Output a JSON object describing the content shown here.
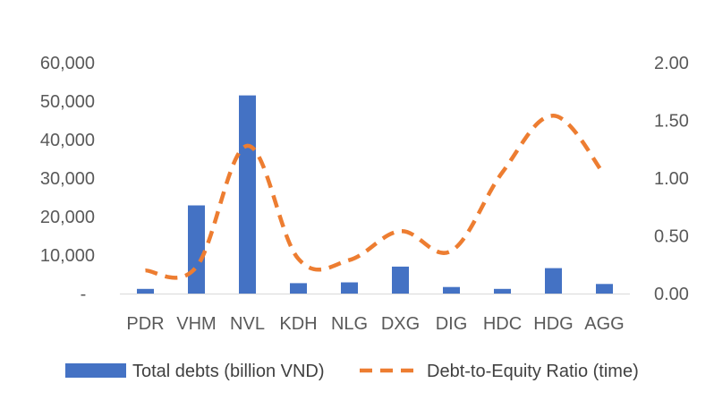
{
  "chart_data": {
    "type": "bar",
    "categories": [
      "PDR",
      "VHM",
      "NVL",
      "KDH",
      "NLG",
      "DXG",
      "DIG",
      "HDC",
      "HDG",
      "AGG"
    ],
    "series": [
      {
        "name": "Total debts (billion VND)",
        "type": "bar",
        "axis": "left",
        "color": "#4472C4",
        "values": [
          1200,
          22900,
          51500,
          2700,
          2900,
          7000,
          1700,
          1200,
          6600,
          2500
        ]
      },
      {
        "name": "Debt-to-Equity Ratio (time)",
        "type": "line",
        "style": "dashed",
        "axis": "right",
        "color": "#ED7D31",
        "values": [
          0.2,
          0.23,
          1.28,
          0.3,
          0.29,
          0.54,
          0.37,
          1.05,
          1.54,
          1.03
        ]
      }
    ],
    "y_left": {
      "ylim": [
        0,
        60000
      ],
      "ticks": [
        0,
        10000,
        20000,
        30000,
        40000,
        50000,
        60000
      ],
      "tick_labels": [
        "-",
        "10,000",
        "20,000",
        "30,000",
        "40,000",
        "50,000",
        "60,000"
      ]
    },
    "y_right": {
      "ylim": [
        0,
        2
      ],
      "ticks": [
        0,
        0.5,
        1,
        1.5,
        2
      ],
      "tick_labels": [
        "0.00",
        "0.50",
        "1.00",
        "1.50",
        "2.00"
      ]
    },
    "grid": false,
    "legend_position": "bottom"
  }
}
